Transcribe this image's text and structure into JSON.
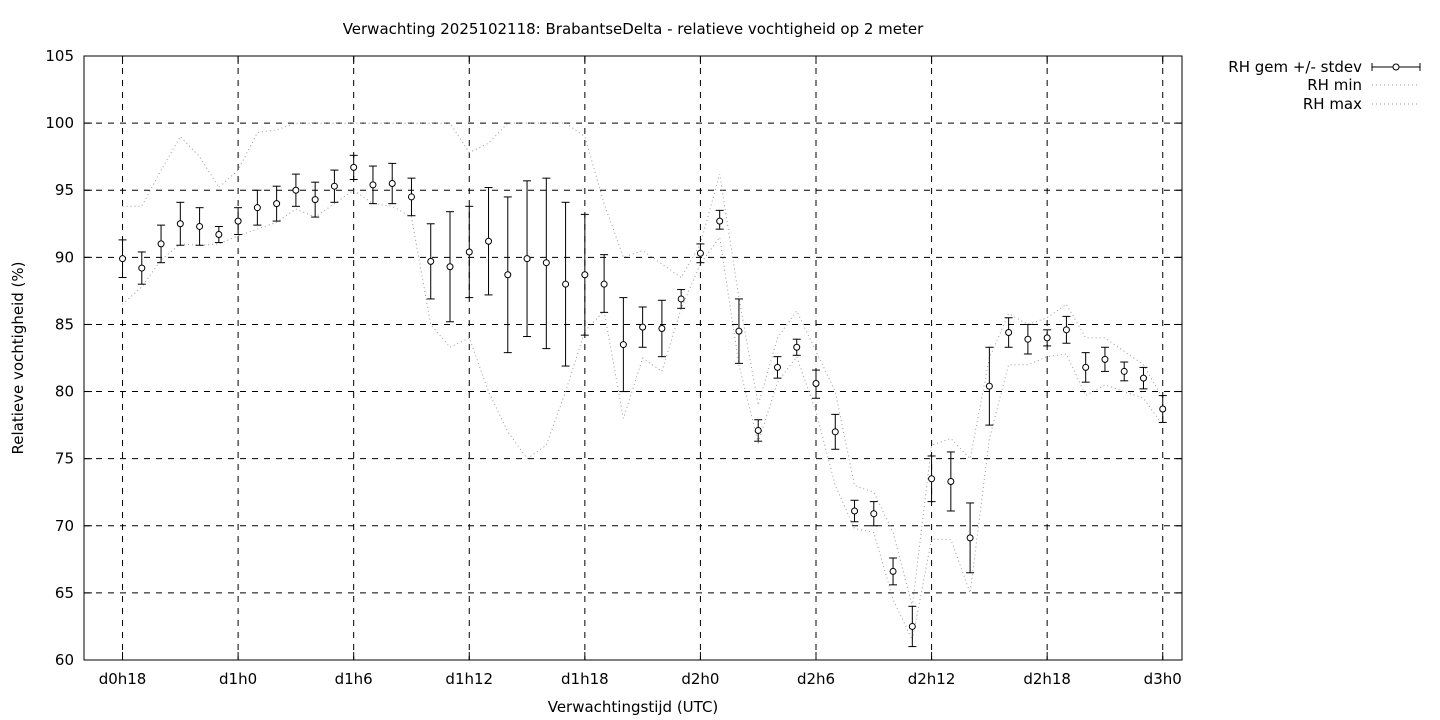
{
  "chart_data": {
    "type": "line",
    "title": "Verwachting 2025102118: BrabantseDelta - relatieve vochtigheid op 2 meter",
    "xlabel": "Verwachtingstijd (UTC)",
    "ylabel": "Relatieve vochtigheid (%)",
    "xlim": [
      -2,
      55
    ],
    "ylim": [
      60,
      105
    ],
    "yticks": [
      60,
      65,
      70,
      75,
      80,
      85,
      90,
      95,
      100,
      105
    ],
    "xticks": [
      {
        "x": 0,
        "label": "d0h18"
      },
      {
        "x": 6,
        "label": "d1h0"
      },
      {
        "x": 12,
        "label": "d1h6"
      },
      {
        "x": 18,
        "label": "d1h12"
      },
      {
        "x": 24,
        "label": "d1h18"
      },
      {
        "x": 30,
        "label": "d2h0"
      },
      {
        "x": 36,
        "label": "d2h6"
      },
      {
        "x": 42,
        "label": "d2h12"
      },
      {
        "x": 48,
        "label": "d2h18"
      },
      {
        "x": 54,
        "label": "d3h0"
      }
    ],
    "grid": true,
    "legend_position": "outside-top-right",
    "x": [
      0,
      1,
      2,
      3,
      4,
      5,
      6,
      7,
      8,
      9,
      10,
      11,
      12,
      13,
      14,
      15,
      16,
      17,
      18,
      19,
      20,
      21,
      22,
      23,
      24,
      25,
      26,
      27,
      28,
      29,
      30,
      31,
      32,
      33,
      34,
      35,
      36,
      37,
      38,
      39,
      40,
      41,
      42,
      43,
      44,
      45,
      46,
      47,
      48,
      49,
      50,
      51,
      52,
      53,
      54
    ],
    "series": [
      {
        "name": "RH gem +/- stdev",
        "style": "errorbars",
        "values": [
          89.9,
          89.2,
          91.0,
          92.5,
          92.3,
          91.7,
          92.7,
          93.7,
          94.0,
          95.0,
          94.3,
          95.3,
          96.7,
          95.4,
          95.5,
          94.5,
          89.7,
          89.3,
          90.4,
          91.2,
          88.7,
          89.9,
          89.6,
          88.0,
          88.7,
          88.0,
          83.5,
          84.8,
          84.7,
          86.9,
          90.3,
          92.7,
          84.5,
          77.1,
          81.8,
          83.3,
          80.6,
          77.0,
          71.1,
          70.9,
          66.6,
          62.5,
          73.5,
          73.3,
          69.1,
          80.4,
          84.4,
          83.9,
          84.0,
          84.6,
          81.8,
          82.4,
          81.5,
          81.0,
          78.7
        ],
        "err_low": [
          88.5,
          88.0,
          89.6,
          90.9,
          90.9,
          91.1,
          91.7,
          92.4,
          92.7,
          93.8,
          93.0,
          94.1,
          95.8,
          94.0,
          94.0,
          93.1,
          86.9,
          85.2,
          87.0,
          87.2,
          82.9,
          84.1,
          83.2,
          81.9,
          84.2,
          85.9,
          80.0,
          83.3,
          82.6,
          86.2,
          89.6,
          92.1,
          82.1,
          76.3,
          81.0,
          82.7,
          79.5,
          75.7,
          70.3,
          70.0,
          65.6,
          61.0,
          71.8,
          71.1,
          66.5,
          77.5,
          83.3,
          82.8,
          83.4,
          83.6,
          80.7,
          81.5,
          80.8,
          80.2,
          77.7
        ],
        "err_high": [
          91.3,
          90.4,
          92.4,
          94.1,
          93.7,
          92.3,
          93.7,
          95.0,
          95.3,
          96.2,
          95.6,
          96.5,
          97.6,
          96.8,
          97.0,
          95.9,
          92.5,
          93.4,
          93.8,
          95.2,
          94.5,
          95.7,
          95.9,
          94.1,
          93.2,
          90.2,
          87.0,
          86.3,
          86.8,
          87.6,
          91.0,
          93.5,
          86.9,
          77.9,
          82.6,
          83.9,
          81.6,
          78.3,
          71.9,
          71.8,
          67.6,
          64.0,
          75.2,
          75.5,
          71.7,
          83.3,
          85.5,
          85.0,
          84.6,
          85.6,
          82.9,
          83.3,
          82.2,
          81.8,
          79.7
        ]
      },
      {
        "name": "RH min",
        "style": "dotted",
        "values": [
          86.5,
          87.8,
          89.8,
          91.0,
          90.9,
          91.0,
          91.6,
          92.1,
          92.6,
          93.6,
          93.0,
          94.0,
          95.0,
          94.0,
          93.8,
          93.0,
          85.0,
          83.3,
          84.0,
          80.0,
          77.0,
          75.0,
          76.0,
          80.0,
          84.5,
          86.0,
          78.0,
          82.5,
          81.5,
          86.2,
          89.5,
          91.5,
          82.0,
          76.2,
          80.7,
          82.6,
          78.5,
          73.0,
          69.8,
          69.5,
          64.5,
          61.5,
          69.0,
          69.0,
          65.0,
          76.5,
          82.0,
          82.0,
          82.6,
          82.8,
          79.7,
          80.5,
          80.0,
          79.5,
          77.5
        ]
      },
      {
        "name": "RH max",
        "style": "dotted",
        "values": [
          93.8,
          93.8,
          96.5,
          99.0,
          97.5,
          95.2,
          96.5,
          99.3,
          99.5,
          100.0,
          100.0,
          100.0,
          100.0,
          100.0,
          100.0,
          100.0,
          100.0,
          100.0,
          97.8,
          98.5,
          100.0,
          100.0,
          100.0,
          100.0,
          99.0,
          94.0,
          90.0,
          90.5,
          89.5,
          88.5,
          91.0,
          96.2,
          87.0,
          79.0,
          84.0,
          86.0,
          83.0,
          80.0,
          73.0,
          72.5,
          69.5,
          64.0,
          76.0,
          76.5,
          75.0,
          82.5,
          85.8,
          85.0,
          85.5,
          86.5,
          84.0,
          84.0,
          83.0,
          82.0,
          79.5
        ]
      }
    ]
  }
}
